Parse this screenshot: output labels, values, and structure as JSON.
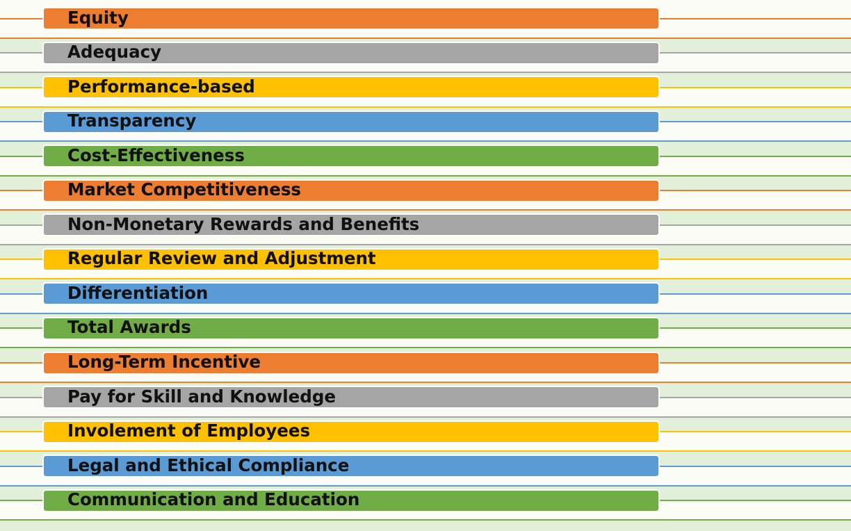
{
  "items": [
    {
      "label": "Equity"
    },
    {
      "label": "Adequacy"
    },
    {
      "label": "Performance-based"
    },
    {
      "label": "Transparency"
    },
    {
      "label": "Cost-Effectiveness"
    },
    {
      "label": "Market Competitiveness"
    },
    {
      "label": "Non-Monetary Rewards and Benefits"
    },
    {
      "label": "Regular Review and Adjustment"
    },
    {
      "label": "Differentiation"
    },
    {
      "label": "Total Awards"
    },
    {
      "label": "Long-Term Incentive"
    },
    {
      "label": "Pay for Skill and Knowledge"
    },
    {
      "label": "Involement of Employees"
    },
    {
      "label": "Legal and Ethical Compliance"
    },
    {
      "label": "Communication and Education"
    }
  ]
}
